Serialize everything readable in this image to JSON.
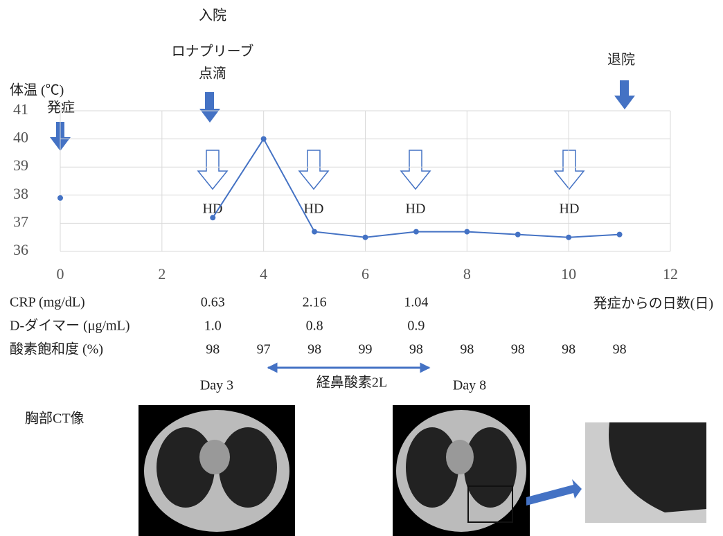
{
  "chart_data": {
    "type": "line",
    "y_label": "体温 (℃)",
    "x_label": "発症からの日数(日)",
    "x": [
      0,
      1,
      2,
      3,
      4,
      5,
      6,
      7,
      8,
      9,
      10,
      11
    ],
    "series": [
      {
        "color": "#4472c4",
        "values": [
          37.9,
          null,
          null,
          37.2,
          40.0,
          36.7,
          36.5,
          36.7,
          36.7,
          36.6,
          36.5,
          36.6
        ]
      }
    ],
    "xlim": [
      0,
      12
    ],
    "xticks": [
      0,
      2,
      4,
      6,
      8,
      10,
      12
    ],
    "ylim": [
      36,
      41
    ],
    "yticks": [
      36,
      37,
      38,
      39,
      40,
      41
    ],
    "grid": true,
    "annotations": {
      "onset": "発症",
      "admission": "入院",
      "drug": [
        "ロナプリーブ",
        "点滴"
      ],
      "discharge": "退院",
      "hd": [
        "HD",
        "HD",
        "HD",
        "HD"
      ]
    }
  },
  "lab_table": {
    "rows": [
      {
        "label": "CRP (mg/dL)",
        "cells": [
          "0.63",
          null,
          "2.16",
          null,
          "1.04",
          null,
          null,
          null,
          null
        ]
      },
      {
        "label": "D-ダイマー (μg/mL)",
        "cells": [
          "1.0",
          null,
          "0.8",
          null,
          "0.9",
          null,
          null,
          null,
          null
        ]
      },
      {
        "label": "酸素飽和度 (%)",
        "cells": [
          "98",
          "97",
          "98",
          "99",
          "98",
          "98",
          "98",
          "98",
          "98"
        ]
      }
    ]
  },
  "oxygen": "経鼻酸素2L",
  "ct": {
    "title": "胸部CT像",
    "day3": "Day 3",
    "day8": "Day 8"
  }
}
